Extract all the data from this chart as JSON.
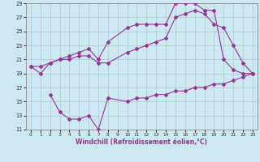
{
  "line1_x": [
    0,
    1,
    2,
    3,
    4,
    5,
    6,
    7,
    8,
    10,
    11,
    12,
    13,
    14,
    15,
    16,
    17,
    18,
    19,
    20,
    21,
    22,
    23
  ],
  "line1_y": [
    20.0,
    19.0,
    20.5,
    21.0,
    21.5,
    22.0,
    22.5,
    21.0,
    23.5,
    25.5,
    26.0,
    26.0,
    26.0,
    26.0,
    29.0,
    29.0,
    29.0,
    28.0,
    28.0,
    21.0,
    19.5,
    19.0,
    19.0
  ],
  "line2_x": [
    0,
    1,
    2,
    3,
    4,
    5,
    6,
    7,
    8,
    10,
    11,
    12,
    13,
    14,
    15,
    16,
    17,
    18,
    19,
    20,
    21,
    22,
    23
  ],
  "line2_y": [
    20.0,
    20.0,
    20.5,
    21.0,
    21.0,
    21.5,
    21.5,
    20.5,
    20.5,
    22.0,
    22.5,
    23.0,
    23.5,
    24.0,
    27.0,
    27.5,
    28.0,
    27.5,
    26.0,
    25.5,
    23.0,
    20.5,
    19.0
  ],
  "line3_x": [
    2,
    3,
    4,
    5,
    6,
    7,
    8,
    10,
    11,
    12,
    13,
    14,
    15,
    16,
    17,
    18,
    19,
    20,
    21,
    22,
    23
  ],
  "line3_y": [
    16.0,
    13.5,
    12.5,
    12.5,
    13.0,
    11.0,
    15.5,
    15.0,
    15.5,
    15.5,
    16.0,
    16.0,
    16.5,
    16.5,
    17.0,
    17.0,
    17.5,
    17.5,
    18.0,
    18.5,
    19.0
  ],
  "color": "#993399",
  "bg_color": "#cce8f0",
  "grid_color": "#aacccc",
  "xlabel": "Windchill (Refroidissement éolien,°C)",
  "xlim": [
    -0.5,
    23.5
  ],
  "ylim": [
    11,
    29
  ],
  "xticks": [
    0,
    1,
    2,
    3,
    4,
    5,
    6,
    7,
    8,
    9,
    10,
    11,
    12,
    13,
    14,
    15,
    16,
    17,
    18,
    19,
    20,
    21,
    22,
    23
  ],
  "yticks": [
    11,
    13,
    15,
    17,
    19,
    21,
    23,
    25,
    27,
    29
  ],
  "marker": "D",
  "markersize": 2.0,
  "linewidth": 0.8,
  "tick_fontsize": 4.5,
  "xlabel_fontsize": 5.5
}
